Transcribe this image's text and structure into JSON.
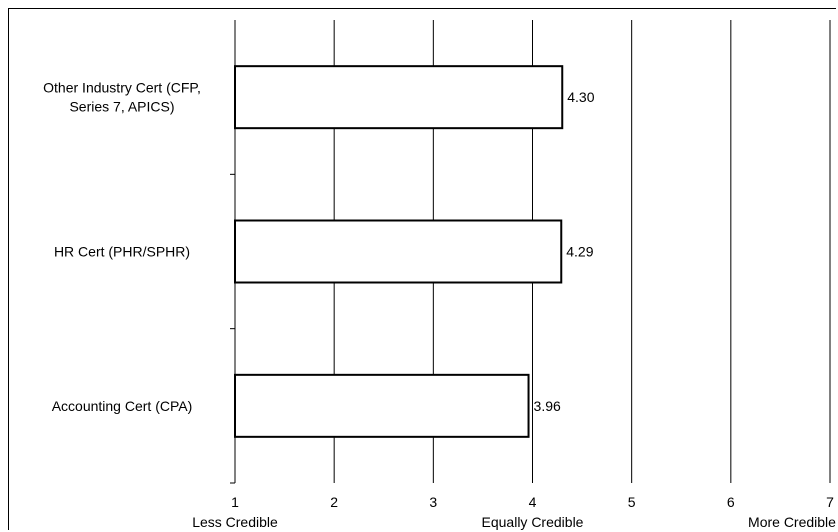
{
  "chart_data": {
    "type": "bar",
    "orientation": "horizontal",
    "categories": [
      [
        "Other Industry Cert (CFP,",
        "Series 7, APICS)"
      ],
      [
        "HR Cert (PHR/SPHR)"
      ],
      [
        "Accounting Cert (CPA)"
      ]
    ],
    "values": [
      4.3,
      4.29,
      3.96
    ],
    "value_labels": [
      "4.30",
      "4.29",
      "3.96"
    ],
    "xlim": [
      1,
      7
    ],
    "x_ticks": [
      "1",
      "2",
      "3",
      "4",
      "5",
      "6",
      "7"
    ],
    "axis_annotations": [
      "Less Credible",
      "Equally Credible",
      "More Credible"
    ],
    "grid": "vertical",
    "bar_fill": "#ffffff",
    "bar_stroke": "#000000",
    "grid_color": "#000000"
  }
}
